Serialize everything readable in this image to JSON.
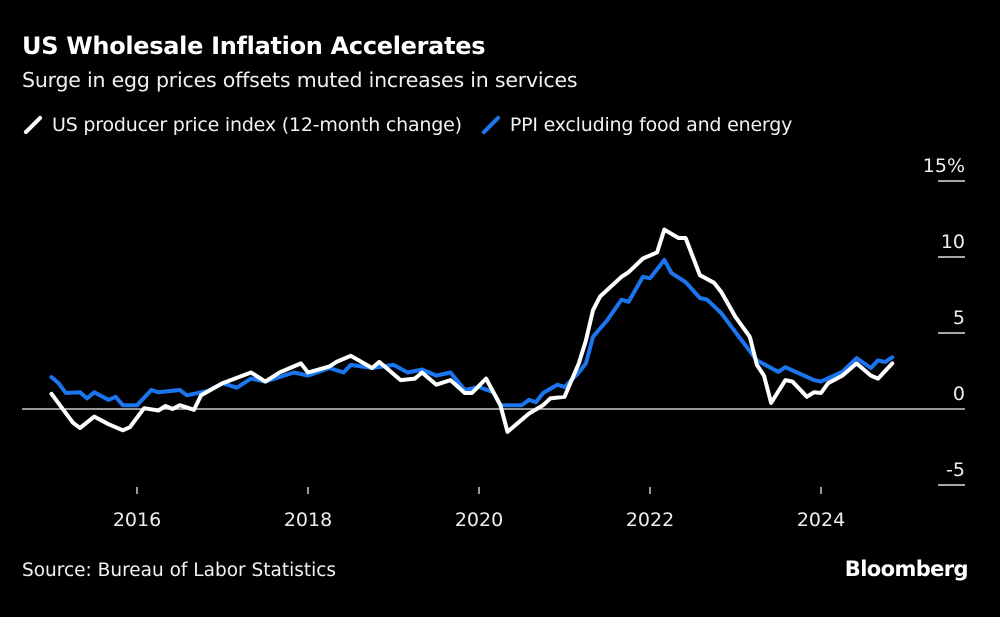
{
  "chart_data": {
    "type": "line",
    "title": "US Wholesale Inflation Accelerates",
    "subtitle": "Surge in egg prices offsets muted increases in services",
    "xlabel": "",
    "ylabel": "",
    "xlim": [
      "2015-01",
      "2024-11"
    ],
    "ylim": [
      -5,
      15
    ],
    "y_ticks": [
      "15%",
      "10",
      "5",
      "0",
      "-5"
    ],
    "y_tick_values": [
      15,
      10,
      5,
      0,
      -5
    ],
    "x_ticks": [
      "2016",
      "2018",
      "2020",
      "2022",
      "2024"
    ],
    "grid": false,
    "y_axis_side": "right",
    "legend_placement": "top-left",
    "series": [
      {
        "name": "US producer price index (12-month change)",
        "color": "#ffffff",
        "points": [
          [
            "2015-01",
            1.0
          ],
          [
            "2015-04",
            -0.9
          ],
          [
            "2015-05",
            -1.25
          ],
          [
            "2015-07",
            -0.5
          ],
          [
            "2015-09",
            -1.0
          ],
          [
            "2015-11",
            -1.4
          ],
          [
            "2015-12",
            -1.2
          ],
          [
            "2016-02",
            0.05
          ],
          [
            "2016-04",
            -0.1
          ],
          [
            "2016-05",
            0.2
          ],
          [
            "2016-06",
            0.0
          ],
          [
            "2016-07",
            0.25
          ],
          [
            "2016-09",
            -0.05
          ],
          [
            "2016-10",
            0.9
          ],
          [
            "2017-01",
            1.7
          ],
          [
            "2017-05",
            2.4
          ],
          [
            "2017-07",
            1.8
          ],
          [
            "2017-09",
            2.4
          ],
          [
            "2017-12",
            3.0
          ],
          [
            "2018-01",
            2.4
          ],
          [
            "2018-04",
            2.8
          ],
          [
            "2018-05",
            3.1
          ],
          [
            "2018-07",
            3.5
          ],
          [
            "2018-10",
            2.7
          ],
          [
            "2018-11",
            3.1
          ],
          [
            "2018-12",
            2.7
          ],
          [
            "2019-02",
            1.9
          ],
          [
            "2019-04",
            2.0
          ],
          [
            "2019-05",
            2.4
          ],
          [
            "2019-07",
            1.6
          ],
          [
            "2019-09",
            1.9
          ],
          [
            "2019-11",
            1.05
          ],
          [
            "2019-12",
            1.05
          ],
          [
            "2020-02",
            2.0
          ],
          [
            "2020-04",
            0.25
          ],
          [
            "2020-05",
            -1.5
          ],
          [
            "2020-08",
            -0.3
          ],
          [
            "2020-10",
            0.25
          ],
          [
            "2020-11",
            0.7
          ],
          [
            "2021-01",
            0.8
          ],
          [
            "2021-03",
            3.0
          ],
          [
            "2021-04",
            4.5
          ],
          [
            "2021-05",
            6.5
          ],
          [
            "2021-06",
            7.4
          ],
          [
            "2021-09",
            8.7
          ],
          [
            "2021-10",
            9.0
          ],
          [
            "2021-12",
            9.9
          ],
          [
            "2022-02",
            10.3
          ],
          [
            "2022-03",
            11.8
          ],
          [
            "2022-05",
            11.25
          ],
          [
            "2022-06",
            11.25
          ],
          [
            "2022-08",
            8.8
          ],
          [
            "2022-10",
            8.3
          ],
          [
            "2022-11",
            7.7
          ],
          [
            "2023-01",
            6.05
          ],
          [
            "2023-03",
            4.75
          ],
          [
            "2023-04",
            2.9
          ],
          [
            "2023-05",
            2.2
          ],
          [
            "2023-06",
            0.4
          ],
          [
            "2023-08",
            1.9
          ],
          [
            "2023-09",
            1.8
          ],
          [
            "2023-11",
            0.8
          ],
          [
            "2023-12",
            1.1
          ],
          [
            "2024-01",
            1.05
          ],
          [
            "2024-02",
            1.7
          ],
          [
            "2024-04",
            2.2
          ],
          [
            "2024-06",
            3.0
          ],
          [
            "2024-08",
            2.2
          ],
          [
            "2024-09",
            2.0
          ],
          [
            "2024-11",
            3.0
          ]
        ]
      },
      {
        "name": "PPI excluding food and energy",
        "color": "#1a75ef",
        "points": [
          [
            "2015-01",
            2.1
          ],
          [
            "2015-02",
            1.7
          ],
          [
            "2015-03",
            1.05
          ],
          [
            "2015-05",
            1.1
          ],
          [
            "2015-06",
            0.7
          ],
          [
            "2015-07",
            1.1
          ],
          [
            "2015-09",
            0.6
          ],
          [
            "2015-10",
            0.8
          ],
          [
            "2015-11",
            0.25
          ],
          [
            "2016-01",
            0.25
          ],
          [
            "2016-03",
            1.25
          ],
          [
            "2016-04",
            1.1
          ],
          [
            "2016-07",
            1.25
          ],
          [
            "2016-08",
            0.9
          ],
          [
            "2016-11",
            1.2
          ],
          [
            "2017-01",
            1.7
          ],
          [
            "2017-03",
            1.4
          ],
          [
            "2017-05",
            2.0
          ],
          [
            "2017-07",
            1.8
          ],
          [
            "2017-11",
            2.4
          ],
          [
            "2018-01",
            2.2
          ],
          [
            "2018-04",
            2.7
          ],
          [
            "2018-06",
            2.4
          ],
          [
            "2018-07",
            2.9
          ],
          [
            "2018-10",
            2.7
          ],
          [
            "2019-01",
            2.9
          ],
          [
            "2019-03",
            2.4
          ],
          [
            "2019-05",
            2.6
          ],
          [
            "2019-07",
            2.2
          ],
          [
            "2019-09",
            2.4
          ],
          [
            "2019-11",
            1.25
          ],
          [
            "2020-01",
            1.45
          ],
          [
            "2020-03",
            1.1
          ],
          [
            "2020-04",
            0.25
          ],
          [
            "2020-07",
            0.25
          ],
          [
            "2020-08",
            0.6
          ],
          [
            "2020-09",
            0.45
          ],
          [
            "2020-10",
            1.05
          ],
          [
            "2020-12",
            1.6
          ],
          [
            "2021-01",
            1.45
          ],
          [
            "2021-03",
            2.4
          ],
          [
            "2021-04",
            3.0
          ],
          [
            "2021-05",
            4.75
          ],
          [
            "2021-07",
            5.85
          ],
          [
            "2021-09",
            7.2
          ],
          [
            "2021-10",
            7.05
          ],
          [
            "2021-12",
            8.7
          ],
          [
            "2022-01",
            8.6
          ],
          [
            "2022-03",
            9.8
          ],
          [
            "2022-04",
            8.95
          ],
          [
            "2022-06",
            8.35
          ],
          [
            "2022-08",
            7.3
          ],
          [
            "2022-09",
            7.2
          ],
          [
            "2022-11",
            6.3
          ],
          [
            "2023-01",
            5.05
          ],
          [
            "2023-04",
            3.2
          ],
          [
            "2023-07",
            2.45
          ],
          [
            "2023-08",
            2.75
          ],
          [
            "2023-12",
            1.9
          ],
          [
            "2024-01",
            1.8
          ],
          [
            "2024-04",
            2.45
          ],
          [
            "2024-06",
            3.35
          ],
          [
            "2024-08",
            2.7
          ],
          [
            "2024-09",
            3.2
          ],
          [
            "2024-10",
            3.1
          ],
          [
            "2024-11",
            3.4
          ]
        ]
      }
    ],
    "source": "Source: Bureau of Labor Statistics",
    "logo": "Bloomberg"
  }
}
